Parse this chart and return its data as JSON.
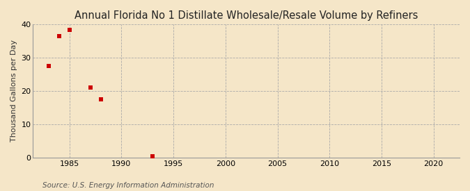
{
  "title": "Annual Florida No 1 Distillate Wholesale/Resale Volume by Refiners",
  "ylabel": "Thousand Gallons per Day",
  "source": "Source: U.S. Energy Information Administration",
  "background_color": "#f5e6c8",
  "plot_background_color": "#f5e6c8",
  "marker_color": "#cc0000",
  "marker": "s",
  "marker_size": 16,
  "x_data": [
    1983,
    1984,
    1985,
    1987,
    1988,
    1993
  ],
  "y_data": [
    27.5,
    36.5,
    38.5,
    21.0,
    17.5,
    0.4
  ],
  "xlim": [
    1981.5,
    2022.5
  ],
  "ylim": [
    0,
    40
  ],
  "xticks": [
    1985,
    1990,
    1995,
    2000,
    2005,
    2010,
    2015,
    2020
  ],
  "yticks": [
    0,
    10,
    20,
    30,
    40
  ],
  "grid_color": "#aaaaaa",
  "grid_style": "--",
  "title_fontsize": 10.5,
  "label_fontsize": 8,
  "tick_fontsize": 8,
  "source_fontsize": 7.5
}
